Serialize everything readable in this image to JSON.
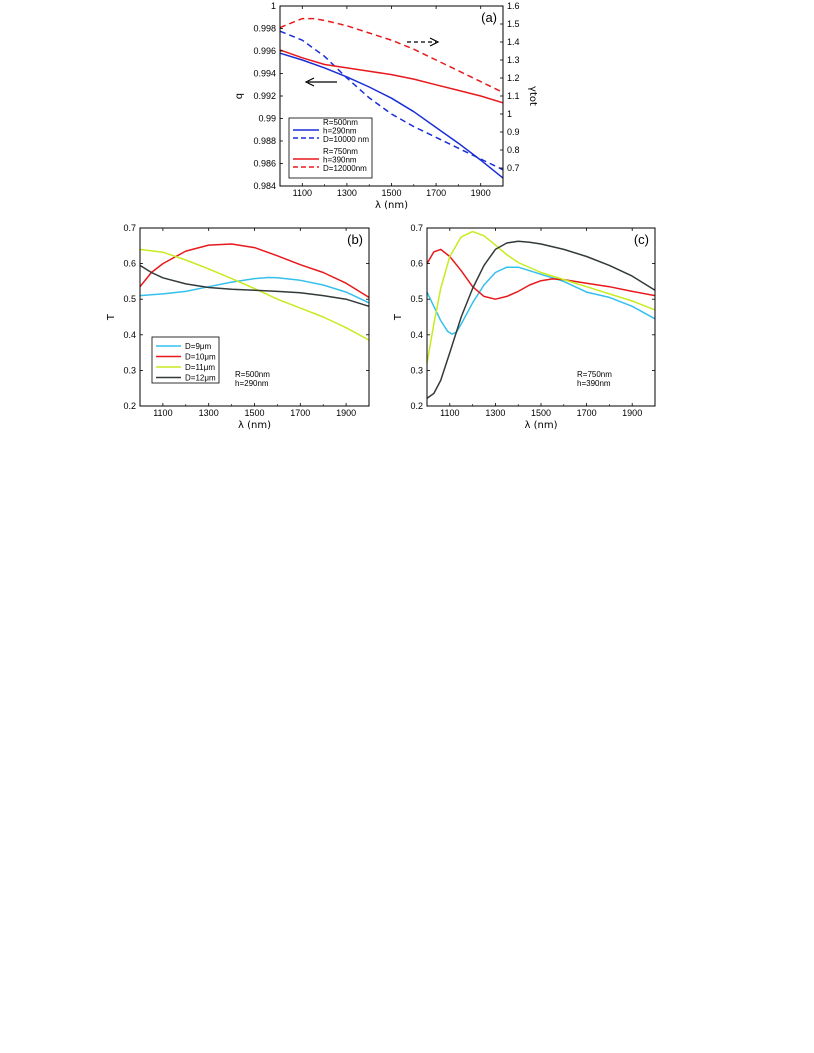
{
  "chart_data": [
    {
      "panel": "a",
      "type": "line",
      "label": "(a)",
      "xlabel": "λ (nm)",
      "ylabel": "q",
      "y2label": "γtot",
      "xlim": [
        1000,
        2000
      ],
      "ylim": [
        0.984,
        1.0
      ],
      "y2lim": [
        0.6,
        1.6
      ],
      "xticks": [
        "1100",
        "1300",
        "1500",
        "1700",
        "1900"
      ],
      "yticks": [
        "0.984",
        "0.986",
        "0.988",
        "0.99",
        "0.992",
        "0.994",
        "0.996",
        "0.998",
        "1"
      ],
      "y2ticks": [
        "0.7",
        "0.8",
        "0.9",
        "1",
        "1.1",
        "1.2",
        "1.3",
        "1.4",
        "1.5",
        "1.6"
      ],
      "legend": {
        "groups": [
          {
            "lines": [
              "R=500nm",
              "h=290nm",
              "D=10000 nm"
            ],
            "color": "#1a2ed8"
          },
          {
            "lines": [
              "R=750nm",
              "h=390nm",
              "D=12000nm"
            ],
            "color": "#e8191c"
          }
        ]
      },
      "series": [
        {
          "axis": "left",
          "color": "#1a2ed8",
          "dash": false,
          "x": [
            1000,
            1100,
            1200,
            1300,
            1400,
            1500,
            1600,
            1700,
            1800,
            1900,
            2000
          ],
          "y": [
            0.9958,
            0.9952,
            0.9945,
            0.9937,
            0.9928,
            0.9918,
            0.9906,
            0.9892,
            0.9878,
            0.9863,
            0.9847
          ]
        },
        {
          "axis": "right",
          "color": "#1a2ed8",
          "dash": true,
          "x": [
            1000,
            1100,
            1200,
            1300,
            1400,
            1500,
            1600,
            1700,
            1800,
            1900,
            2000
          ],
          "y": [
            1.46,
            1.41,
            1.32,
            1.2,
            1.09,
            1.0,
            0.93,
            0.87,
            0.81,
            0.75,
            0.69
          ]
        },
        {
          "axis": "left",
          "color": "#e8191c",
          "dash": false,
          "x": [
            1000,
            1100,
            1200,
            1300,
            1400,
            1500,
            1600,
            1700,
            1800,
            1900,
            2000
          ],
          "y": [
            0.9961,
            0.9954,
            0.9948,
            0.9945,
            0.9942,
            0.9939,
            0.9935,
            0.993,
            0.9925,
            0.992,
            0.9914
          ]
        },
        {
          "axis": "right",
          "color": "#e8191c",
          "dash": true,
          "x": [
            1000,
            1100,
            1150,
            1200,
            1300,
            1400,
            1500,
            1600,
            1700,
            1800,
            1900,
            2000
          ],
          "y": [
            1.48,
            1.53,
            1.53,
            1.52,
            1.49,
            1.45,
            1.41,
            1.36,
            1.3,
            1.24,
            1.18,
            1.12
          ]
        }
      ],
      "arrows": [
        {
          "direction": "left",
          "style": "solid"
        },
        {
          "direction": "right",
          "style": "dashed"
        }
      ]
    },
    {
      "panel": "b",
      "type": "line",
      "label": "(b)",
      "xlabel": "λ (nm)",
      "ylabel": "T",
      "xlim": [
        1000,
        2000
      ],
      "ylim": [
        0.2,
        0.7
      ],
      "xticks": [
        "1100",
        "1300",
        "1500",
        "1700",
        "1900"
      ],
      "yticks": [
        "0.2",
        "0.3",
        "0.4",
        "0.5",
        "0.6",
        "0.7"
      ],
      "annotation": [
        "R=500nm",
        "h=290nm"
      ],
      "legend": [
        {
          "text": "D=9μm",
          "color": "#35c0ec"
        },
        {
          "text": "D=10μm",
          "color": "#e8191c"
        },
        {
          "text": "D=11μm",
          "color": "#c6ec1f"
        },
        {
          "text": "D=12μm",
          "color": "#333b3a"
        }
      ],
      "series": [
        {
          "name": "D=9μm",
          "color": "#35c0ec",
          "x": [
            1000,
            1100,
            1200,
            1300,
            1400,
            1500,
            1560,
            1600,
            1700,
            1800,
            1900,
            2000
          ],
          "y": [
            0.51,
            0.515,
            0.522,
            0.535,
            0.548,
            0.558,
            0.561,
            0.56,
            0.553,
            0.54,
            0.52,
            0.49
          ]
        },
        {
          "name": "D=10μm",
          "color": "#e8191c",
          "x": [
            1000,
            1050,
            1100,
            1200,
            1300,
            1400,
            1500,
            1600,
            1700,
            1800,
            1900,
            2000
          ],
          "y": [
            0.535,
            0.575,
            0.6,
            0.635,
            0.652,
            0.655,
            0.645,
            0.622,
            0.597,
            0.575,
            0.545,
            0.505
          ]
        },
        {
          "name": "D=11μm",
          "color": "#c6ec1f",
          "x": [
            1000,
            1100,
            1200,
            1300,
            1400,
            1500,
            1600,
            1700,
            1800,
            1900,
            2000
          ],
          "y": [
            0.64,
            0.632,
            0.61,
            0.585,
            0.558,
            0.53,
            0.5,
            0.475,
            0.45,
            0.42,
            0.385
          ]
        },
        {
          "name": "D=12μm",
          "color": "#333b3a",
          "x": [
            1000,
            1050,
            1100,
            1200,
            1300,
            1400,
            1500,
            1600,
            1700,
            1800,
            1900,
            2000
          ],
          "y": [
            0.595,
            0.575,
            0.56,
            0.543,
            0.533,
            0.528,
            0.525,
            0.522,
            0.518,
            0.51,
            0.5,
            0.48
          ]
        }
      ]
    },
    {
      "panel": "c",
      "type": "line",
      "label": "(c)",
      "xlabel": "λ (nm)",
      "ylabel": "T",
      "xlim": [
        1000,
        2000
      ],
      "ylim": [
        0.2,
        0.7
      ],
      "xticks": [
        "1100",
        "1300",
        "1500",
        "1700",
        "1900"
      ],
      "yticks": [
        "0.2",
        "0.3",
        "0.4",
        "0.5",
        "0.6",
        "0.7"
      ],
      "annotation": [
        "R=750nm",
        "h=390nm"
      ],
      "series": [
        {
          "name": "D=9μm",
          "color": "#35c0ec",
          "x": [
            1000,
            1030,
            1060,
            1090,
            1110,
            1130,
            1150,
            1200,
            1250,
            1300,
            1350,
            1400,
            1450,
            1500,
            1600,
            1700,
            1800,
            1900,
            2000
          ],
          "y": [
            0.52,
            0.48,
            0.44,
            0.41,
            0.402,
            0.408,
            0.43,
            0.49,
            0.54,
            0.575,
            0.59,
            0.59,
            0.58,
            0.57,
            0.55,
            0.52,
            0.505,
            0.48,
            0.445
          ]
        },
        {
          "name": "D=10μm",
          "color": "#e8191c",
          "x": [
            1000,
            1030,
            1060,
            1100,
            1150,
            1200,
            1250,
            1300,
            1350,
            1400,
            1450,
            1500,
            1550,
            1600,
            1700,
            1800,
            1900,
            2000
          ],
          "y": [
            0.6,
            0.633,
            0.64,
            0.62,
            0.58,
            0.535,
            0.508,
            0.5,
            0.508,
            0.522,
            0.54,
            0.552,
            0.557,
            0.555,
            0.545,
            0.535,
            0.522,
            0.51
          ]
        },
        {
          "name": "D=11μm",
          "color": "#c6ec1f",
          "x": [
            1000,
            1030,
            1060,
            1100,
            1150,
            1200,
            1250,
            1300,
            1350,
            1400,
            1500,
            1600,
            1700,
            1800,
            1900,
            2000
          ],
          "y": [
            0.32,
            0.43,
            0.53,
            0.62,
            0.675,
            0.69,
            0.678,
            0.652,
            0.625,
            0.603,
            0.575,
            0.555,
            0.535,
            0.515,
            0.495,
            0.47
          ]
        },
        {
          "name": "D=12μm",
          "color": "#333b3a",
          "x": [
            1000,
            1030,
            1060,
            1100,
            1150,
            1200,
            1250,
            1300,
            1350,
            1400,
            1450,
            1500,
            1600,
            1700,
            1800,
            1900,
            2000
          ],
          "y": [
            0.222,
            0.235,
            0.272,
            0.35,
            0.45,
            0.53,
            0.595,
            0.64,
            0.658,
            0.663,
            0.66,
            0.655,
            0.64,
            0.62,
            0.595,
            0.565,
            0.525
          ]
        }
      ]
    }
  ]
}
